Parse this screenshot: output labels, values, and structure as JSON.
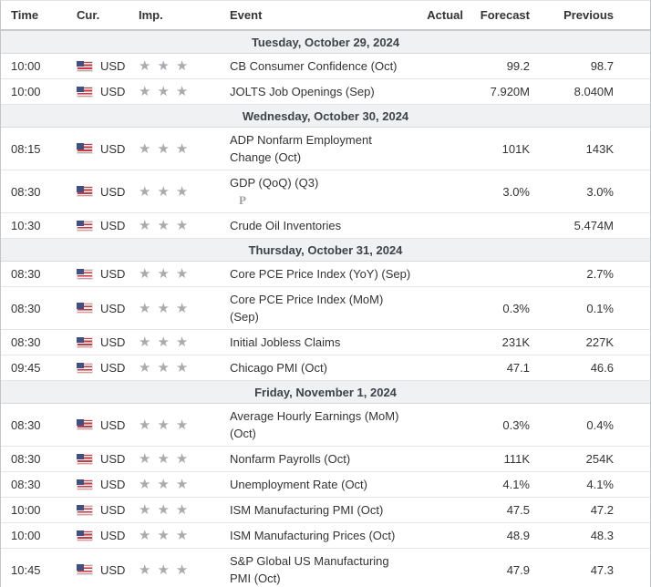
{
  "table": {
    "columns": {
      "time": "Time",
      "cur": "Cur.",
      "imp": "Imp.",
      "event": "Event",
      "actual": "Actual",
      "forecast": "Forecast",
      "previous": "Previous"
    },
    "currency": "USD",
    "importance_stars": 3,
    "star_glyph": "★★★",
    "preliminary_marker": "P",
    "sections": [
      {
        "date": "Tuesday, October 29, 2024",
        "rows": [
          {
            "time": "10:00",
            "event": "CB Consumer Confidence (Oct)",
            "actual": "",
            "forecast": "99.2",
            "previous": "98.7"
          },
          {
            "time": "10:00",
            "event": "JOLTS Job Openings (Sep)",
            "actual": "",
            "forecast": "7.920M",
            "previous": "8.040M"
          }
        ]
      },
      {
        "date": "Wednesday, October 30, 2024",
        "rows": [
          {
            "time": "08:15",
            "event": "ADP Nonfarm Employment Change (Oct)",
            "actual": "",
            "forecast": "101K",
            "previous": "143K"
          },
          {
            "time": "08:30",
            "event": "GDP (QoQ) (Q3)",
            "preliminary": true,
            "actual": "",
            "forecast": "3.0%",
            "previous": "3.0%"
          },
          {
            "time": "10:30",
            "event": "Crude Oil Inventories",
            "actual": "",
            "forecast": "",
            "previous": "5.474M"
          }
        ]
      },
      {
        "date": "Thursday, October 31, 2024",
        "rows": [
          {
            "time": "08:30",
            "event": "Core PCE Price Index (YoY) (Sep)",
            "actual": "",
            "forecast": "",
            "previous": "2.7%"
          },
          {
            "time": "08:30",
            "event": "Core PCE Price Index (MoM) (Sep)",
            "actual": "",
            "forecast": "0.3%",
            "previous": "0.1%"
          },
          {
            "time": "08:30",
            "event": "Initial Jobless Claims",
            "actual": "",
            "forecast": "231K",
            "previous": "227K"
          },
          {
            "time": "09:45",
            "event": "Chicago PMI (Oct)",
            "actual": "",
            "forecast": "47.1",
            "previous": "46.6"
          }
        ]
      },
      {
        "date": "Friday, November 1, 2024",
        "rows": [
          {
            "time": "08:30",
            "event": "Average Hourly Earnings (MoM) (Oct)",
            "actual": "",
            "forecast": "0.3%",
            "previous": "0.4%"
          },
          {
            "time": "08:30",
            "event": "Nonfarm Payrolls (Oct)",
            "actual": "",
            "forecast": "111K",
            "previous": "254K"
          },
          {
            "time": "08:30",
            "event": "Unemployment Rate (Oct)",
            "actual": "",
            "forecast": "4.1%",
            "previous": "4.1%"
          },
          {
            "time": "10:00",
            "event": "ISM Manufacturing PMI (Oct)",
            "actual": "",
            "forecast": "47.5",
            "previous": "47.2"
          },
          {
            "time": "10:00",
            "event": "ISM Manufacturing Prices (Oct)",
            "actual": "",
            "forecast": "48.9",
            "previous": "48.3"
          },
          {
            "time": "10:45",
            "event": "S&P Global US Manufacturing PMI (Oct)",
            "actual": "",
            "forecast": "47.9",
            "previous": "47.3"
          }
        ]
      }
    ]
  },
  "colors": {
    "star_gray": "#a9abae",
    "date_row_bg": "#f0f1f2",
    "date_row_text": "#3c434c",
    "body_text": "#333333",
    "border_outer": "#c2c5c7",
    "border_row": "#e4e5e6",
    "flag_red": "#c53b43",
    "flag_blue": "#41507e"
  }
}
